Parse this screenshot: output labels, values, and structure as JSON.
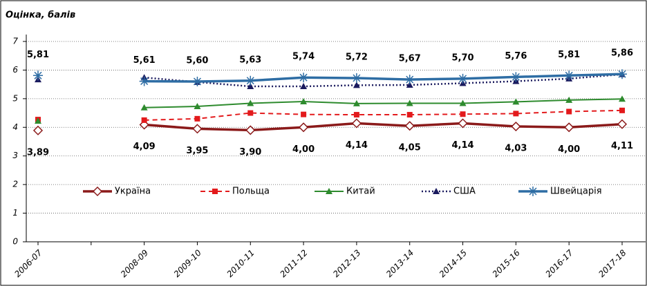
{
  "chart_data": {
    "type": "line",
    "y_label": "Оцінка, балів",
    "categories": [
      "2006-07",
      null,
      "2008-09",
      "2009-10",
      "2010-11",
      "2011-12",
      "2012-13",
      "2013-14",
      "2014-15",
      "2015-16",
      "2016-17",
      "2017-18"
    ],
    "ylim": [
      0,
      7
    ],
    "yticks": [
      0,
      1,
      2,
      3,
      4,
      5,
      6,
      7
    ],
    "grid": true,
    "legend": "inside-bottom",
    "series": [
      {
        "name": "Україна",
        "color": "#8b1a1a",
        "marker": "diamond",
        "dash": "solid",
        "width": 3.5,
        "values": [
          3.89,
          null,
          4.09,
          3.95,
          3.9,
          4.0,
          4.14,
          4.05,
          4.14,
          4.03,
          4.0,
          4.11
        ],
        "value_labels": [
          "3,89",
          null,
          "4,09",
          "3,95",
          "3,90",
          "4,00",
          "4,14",
          "4,05",
          "4,14",
          "4,03",
          "4,00",
          "4,11"
        ]
      },
      {
        "name": "Польща",
        "color": "#e31a1c",
        "marker": "square",
        "dash": "dashed",
        "width": 2,
        "values": [
          4.27,
          null,
          4.25,
          4.3,
          4.5,
          4.45,
          4.44,
          4.44,
          4.46,
          4.48,
          4.55,
          4.59
        ]
      },
      {
        "name": "Китай",
        "color": "#2e8b2e",
        "marker": "triangle",
        "dash": "solid",
        "width": 2,
        "values": [
          4.22,
          null,
          4.69,
          4.73,
          4.84,
          4.9,
          4.83,
          4.84,
          4.84,
          4.89,
          4.95,
          4.99
        ]
      },
      {
        "name": "США",
        "color": "#1a1a5e",
        "marker": "triangle",
        "dash": "dotted",
        "width": 2.5,
        "values": [
          5.67,
          null,
          5.74,
          5.58,
          5.43,
          5.43,
          5.47,
          5.48,
          5.54,
          5.61,
          5.7,
          5.85
        ]
      },
      {
        "name": "Швейцарія",
        "color": "#2e6da4",
        "marker": "asterisk",
        "dash": "solid",
        "width": 3.5,
        "values": [
          5.81,
          null,
          5.61,
          5.6,
          5.63,
          5.74,
          5.72,
          5.67,
          5.7,
          5.76,
          5.81,
          5.86
        ],
        "value_labels": [
          "5,81",
          null,
          "5,61",
          "5,60",
          "5,63",
          "5,74",
          "5,72",
          "5,67",
          "5,70",
          "5,76",
          "5,81",
          "5,86"
        ]
      }
    ]
  }
}
